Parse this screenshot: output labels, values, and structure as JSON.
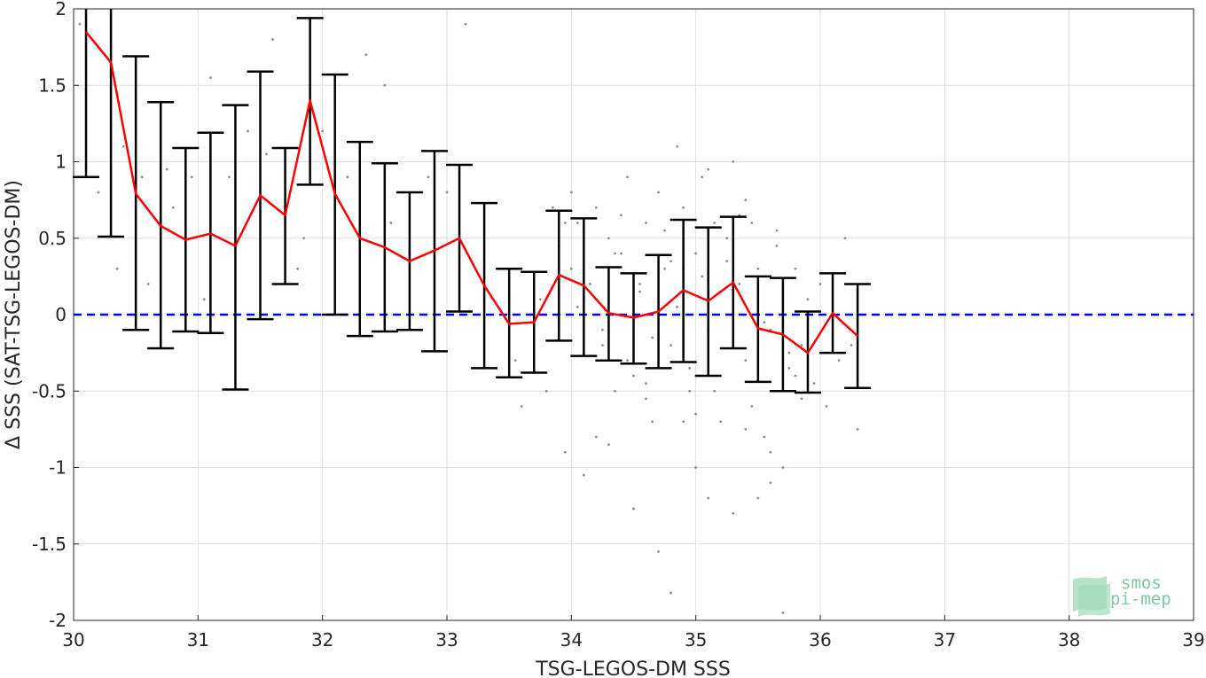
{
  "chart_data": {
    "type": "line",
    "xlabel": "TSG-LEGOS-DM SSS",
    "ylabel": "Δ SSS (SAT-TSG-LEGOS-DM)",
    "xlim": [
      30,
      39
    ],
    "ylim": [
      -2,
      2
    ],
    "xticks": [
      "30",
      "31",
      "32",
      "33",
      "34",
      "35",
      "36",
      "37",
      "38",
      "39"
    ],
    "yticks": [
      "-2",
      "-1.5",
      "-1",
      "-0.5",
      "0",
      "0.5",
      "1",
      "1.5",
      "2"
    ],
    "grid": true,
    "series": [
      {
        "kind": "mean-with-std-errorbars",
        "color": "#ff0000",
        "errorbar_color": "#000000",
        "x": [
          30.1,
          30.3,
          30.5,
          30.7,
          30.9,
          31.1,
          31.3,
          31.5,
          31.7,
          31.9,
          32.1,
          32.3,
          32.5,
          32.7,
          32.9,
          33.1,
          33.3,
          33.5,
          33.7,
          33.9,
          34.1,
          34.3,
          34.5,
          34.7,
          34.9,
          35.1,
          35.3,
          35.5,
          35.7,
          35.9,
          36.1,
          36.3
        ],
        "y": [
          1.85,
          1.65,
          0.79,
          0.58,
          0.49,
          0.53,
          0.45,
          0.78,
          0.65,
          1.4,
          0.79,
          0.5,
          0.44,
          0.35,
          0.42,
          0.5,
          0.19,
          -0.06,
          -0.05,
          0.26,
          0.19,
          0.01,
          -0.02,
          0.02,
          0.16,
          0.09,
          0.21,
          -0.09,
          -0.13,
          -0.25,
          0.01,
          -0.14
        ],
        "lower": [
          0.9,
          0.51,
          -0.1,
          -0.22,
          -0.11,
          -0.12,
          -0.49,
          -0.03,
          0.2,
          0.85,
          0.0,
          -0.14,
          -0.11,
          -0.1,
          -0.24,
          0.02,
          -0.35,
          -0.41,
          -0.38,
          -0.17,
          -0.27,
          -0.3,
          -0.32,
          -0.35,
          -0.31,
          -0.4,
          -0.22,
          -0.44,
          -0.5,
          -0.51,
          -0.25,
          -0.48
        ],
        "upper": [
          2.0,
          2.0,
          1.69,
          1.39,
          1.09,
          1.19,
          1.37,
          1.59,
          1.09,
          1.94,
          1.57,
          1.13,
          0.99,
          0.8,
          1.07,
          0.98,
          0.73,
          0.3,
          0.28,
          0.68,
          0.63,
          0.31,
          0.27,
          0.39,
          0.62,
          0.57,
          0.64,
          0.25,
          0.24,
          0.02,
          0.27,
          0.2
        ]
      },
      {
        "kind": "reference-line",
        "style": "dashed",
        "color": "#0000ff",
        "y": 0
      },
      {
        "kind": "scatter",
        "color": "#8c8c8c",
        "x": [
          30.05,
          30.2,
          30.35,
          30.4,
          30.55,
          30.6,
          30.75,
          30.8,
          30.95,
          31.05,
          31.1,
          31.25,
          31.4,
          31.55,
          31.6,
          31.7,
          31.8,
          31.85,
          32.0,
          32.2,
          32.35,
          32.5,
          32.55,
          32.7,
          32.85,
          33.0,
          33.15,
          33.3,
          33.45,
          33.55,
          33.6,
          33.75,
          33.8,
          33.85,
          33.9,
          33.95,
          34.0,
          34.05,
          34.1,
          34.15,
          34.2,
          34.25,
          34.3,
          34.35,
          34.4,
          34.45,
          34.5,
          34.55,
          34.6,
          34.65,
          34.7,
          34.75,
          34.8,
          34.85,
          34.9,
          34.95,
          35.0,
          35.05,
          35.1,
          35.15,
          35.2,
          35.25,
          35.3,
          35.35,
          35.4,
          35.45,
          35.5,
          35.55,
          35.6,
          35.65,
          35.7,
          35.75,
          35.8,
          35.85,
          35.9,
          35.95,
          36.0,
          36.05,
          36.1,
          36.15,
          36.2,
          36.25,
          36.3,
          33.9,
          34.0,
          34.1,
          34.2,
          34.4,
          34.6,
          34.8,
          35.0,
          35.2,
          35.4,
          35.6,
          35.8,
          33.95,
          34.05,
          34.15,
          34.25,
          34.35,
          34.45,
          34.55,
          34.65,
          34.75,
          34.85,
          34.95,
          35.05,
          35.15,
          35.25,
          35.35,
          35.45,
          35.55,
          35.65,
          35.75,
          35.85,
          34.1,
          34.3,
          34.5,
          34.7,
          34.9,
          35.1,
          35.3,
          35.5,
          35.7,
          34.2,
          34.6,
          35.0,
          35.4,
          34.8,
          35.6,
          35.1,
          34.9
        ],
        "y": [
          1.9,
          0.8,
          0.3,
          1.1,
          0.9,
          0.2,
          0.95,
          0.7,
          0.9,
          0.1,
          1.55,
          0.9,
          1.2,
          1.05,
          1.8,
          0.9,
          0.3,
          0.5,
          1.2,
          0.9,
          1.7,
          1.5,
          0.6,
          0.4,
          0.9,
          0.8,
          1.9,
          0.3,
          0.0,
          -0.3,
          -0.6,
          0.1,
          -0.5,
          0.7,
          0.5,
          -0.9,
          0.8,
          0.6,
          -1.05,
          0.2,
          0.7,
          -0.2,
          0.5,
          -0.5,
          0.4,
          0.9,
          -0.4,
          0.2,
          0.6,
          -0.7,
          0.8,
          0.3,
          -0.2,
          1.1,
          0.7,
          -0.5,
          0.4,
          0.9,
          -0.1,
          0.6,
          -0.7,
          0.5,
          1.0,
          0.2,
          -0.3,
          0.6,
          0.3,
          -0.8,
          -0.1,
          0.55,
          -1.0,
          -0.35,
          0.3,
          -0.2,
          0.1,
          -0.45,
          0.2,
          -0.6,
          0.0,
          -0.3,
          0.5,
          -0.2,
          -0.75,
          0.45,
          0.3,
          -0.25,
          0.1,
          0.65,
          -0.55,
          0.35,
          -0.65,
          0.15,
          0.75,
          -0.9,
          -0.4,
          0.6,
          0.05,
          0.2,
          -0.1,
          0.4,
          -0.3,
          0.15,
          -0.15,
          0.55,
          0.05,
          -0.35,
          0.25,
          -0.5,
          0.35,
          0.65,
          -0.6,
          -0.05,
          0.45,
          -0.25,
          -0.55,
          0.1,
          -0.85,
          -1.27,
          -1.55,
          -0.7,
          -1.2,
          -1.3,
          -1.2,
          -1.95,
          -0.8,
          -0.45,
          -1.0,
          -0.75,
          -1.82,
          -1.1,
          0.95,
          0.3
        ],
        "note": "approximate individual matchups (subset)"
      }
    ]
  },
  "logo": {
    "line1": "smos",
    "line2": "pi-mep",
    "color": "#7ec8a0"
  }
}
